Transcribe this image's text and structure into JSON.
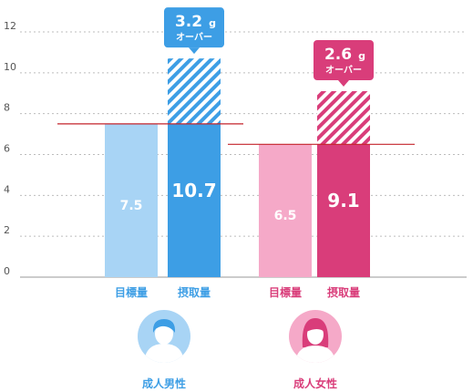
{
  "chart_data": {
    "type": "bar",
    "ylim": [
      0,
      12
    ],
    "yticks": [
      0,
      2,
      4,
      6,
      8,
      10,
      12
    ],
    "grid": true,
    "groups": [
      {
        "name": "成人男性",
        "bars": [
          {
            "label": "目標量",
            "value": 7.5,
            "display": "7.5"
          },
          {
            "label": "摂取量",
            "value": 10.7,
            "display": "10.7"
          }
        ],
        "excess": {
          "amount": "3.2",
          "unit": "g",
          "text": "オーバー"
        },
        "colors": {
          "target": "#a8d4f5",
          "intake": "#3d9ee5",
          "label": "#3d9ee5",
          "callout": "#3d9ee5",
          "avatar_bg": "#a8d4f5"
        }
      },
      {
        "name": "成人女性",
        "bars": [
          {
            "label": "目標量",
            "value": 6.5,
            "display": "6.5"
          },
          {
            "label": "摂取量",
            "value": 9.1,
            "display": "9.1"
          }
        ],
        "excess": {
          "amount": "2.6",
          "unit": "g",
          "text": "オーバー"
        },
        "colors": {
          "target": "#f5a9c8",
          "intake": "#d93d7a",
          "label": "#d93d7a",
          "callout": "#d93d7a",
          "avatar_bg": "#f5a9c8"
        }
      }
    ],
    "reference_line_color": "#c4242b"
  }
}
